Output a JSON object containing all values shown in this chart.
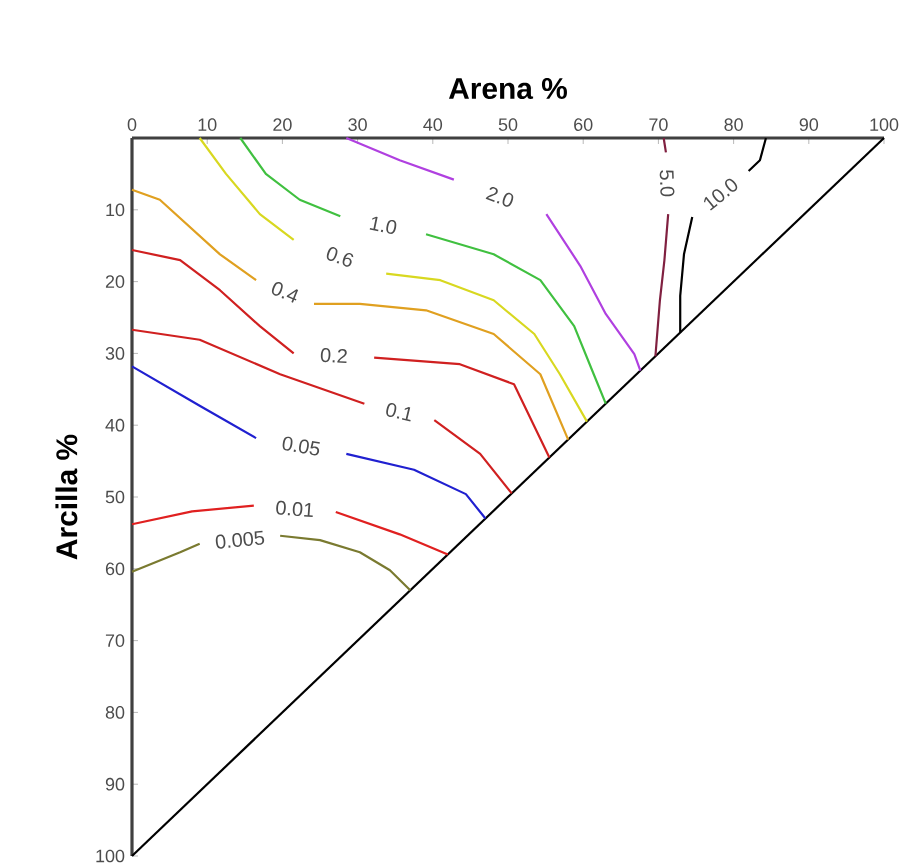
{
  "chart_data": {
    "type": "line",
    "xlabel": "Arena %",
    "ylabel": "Arcilla %",
    "xlim": [
      0,
      100
    ],
    "ylim": [
      100,
      0
    ],
    "xticks": [
      0,
      10,
      20,
      30,
      40,
      50,
      60,
      70,
      80,
      90,
      100
    ],
    "yticks": [
      10,
      20,
      30,
      40,
      50,
      60,
      70,
      80,
      90,
      100
    ],
    "marker": "none",
    "line_style": "solid",
    "series": [
      {
        "color": "#000000",
        "x": [
          100,
          0
        ],
        "values": [
          0,
          100
        ]
      },
      {
        "name": "0.005",
        "color": "#7a7a30",
        "x": [
          0,
          6.4,
          9,
          14,
          19.7,
          25,
          30.3,
          34.3,
          37
        ],
        "values": [
          60.4,
          57.7,
          56.5,
          null,
          55.4,
          56,
          57.7,
          60.2,
          63
        ]
      },
      {
        "name": "0.01",
        "color": "#e02020",
        "x": [
          0,
          8,
          16.2,
          22,
          27.1,
          35.6,
          42
        ],
        "values": [
          53.8,
          52,
          51.2,
          null,
          52.1,
          55.2,
          58
        ]
      },
      {
        "name": "0.05",
        "color": "#2020d0",
        "x": [
          0,
          9,
          16.5,
          22,
          28.5,
          37.5,
          44.4,
          47
        ],
        "values": [
          31.8,
          37.3,
          41.8,
          null,
          44,
          46.2,
          49.6,
          53
        ]
      },
      {
        "name": "0.1",
        "color": "#d02020",
        "x": [
          0,
          9,
          19.7,
          30.9,
          36,
          40.2,
          46.3,
          50.5
        ],
        "values": [
          26.7,
          28.1,
          32.9,
          37,
          null,
          39.3,
          44,
          49.5
        ]
      },
      {
        "name": "0.2",
        "color": "#d02020",
        "x": [
          0,
          6.4,
          11.7,
          17,
          21.5,
          27,
          32.2,
          43.6,
          50.8,
          55.5
        ],
        "values": [
          15.6,
          17,
          21.2,
          26.2,
          30,
          null,
          30.6,
          31.5,
          34.3,
          44.5
        ]
      },
      {
        "name": "0.4",
        "color": "#e0a020",
        "x": [
          0,
          3.7,
          11.7,
          16.5,
          20,
          24.2,
          30.3,
          39.1,
          48.1,
          54.3,
          58
        ],
        "values": [
          7.2,
          8.6,
          16.2,
          19.8,
          null,
          23.1,
          23.1,
          24,
          27.3,
          32.9,
          42
        ]
      },
      {
        "name": "0.6",
        "color": "#d8d820",
        "x": [
          9,
          12.5,
          17,
          21.5,
          28,
          33.8,
          41,
          48.1,
          53.5,
          56.9,
          60.5
        ],
        "values": [
          0,
          5,
          10.6,
          14.2,
          null,
          18.9,
          19.8,
          22.6,
          27.3,
          32.9,
          39.5
        ]
      },
      {
        "name": "1.0",
        "color": "#40c040",
        "x": [
          14.4,
          17.8,
          22.3,
          27.7,
          34,
          39.1,
          48.1,
          54.3,
          58.8,
          61.4,
          63
        ],
        "values": [
          0,
          5,
          8.6,
          10.9,
          null,
          13.4,
          16.2,
          19.8,
          26.2,
          32.9,
          37
        ]
      },
      {
        "name": "2.0",
        "color": "#b040e0",
        "x": [
          28.5,
          35.6,
          42.8,
          49,
          55.1,
          59.6,
          63,
          66.8,
          67.6
        ],
        "values": [
          0,
          3.1,
          5.8,
          null,
          10.6,
          17.8,
          24.5,
          30.1,
          32.4
        ]
      },
      {
        "name": "5.0",
        "color": "#802040",
        "x": [
          70.7,
          71,
          71.2,
          71.3,
          70.8,
          70.2,
          69.6
        ],
        "values": [
          0,
          2,
          null,
          10.6,
          17,
          22.6,
          30.4
        ]
      },
      {
        "name": "10.0",
        "color": "#000000",
        "x": [
          84.3,
          83.5,
          82,
          78,
          74.5,
          73.4,
          72.9,
          72.9
        ],
        "values": [
          0,
          3.1,
          4.6,
          null,
          11,
          16.2,
          22,
          27.1
        ]
      }
    ]
  }
}
